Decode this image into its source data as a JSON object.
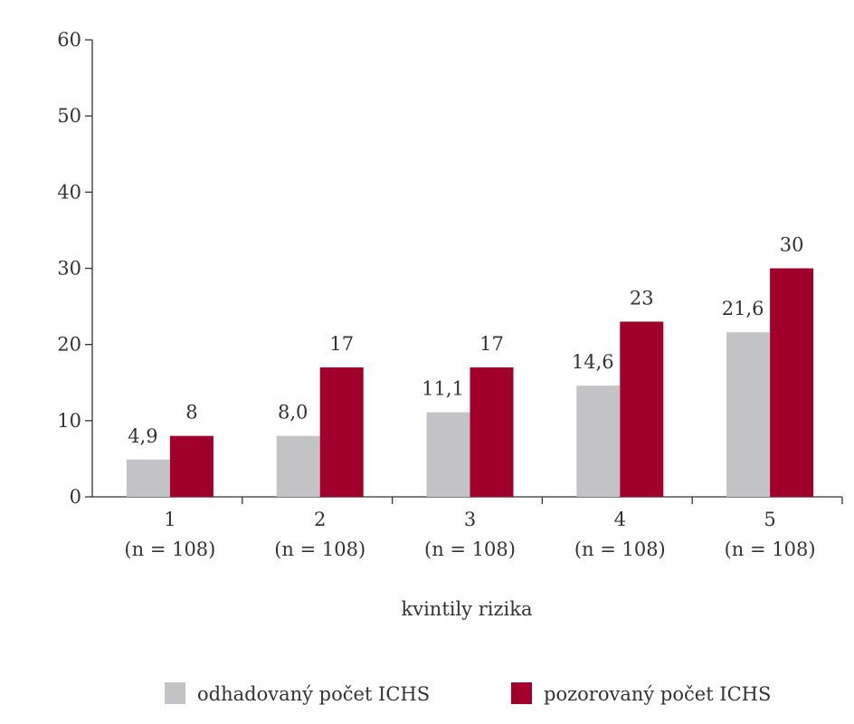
{
  "chart_data": {
    "type": "bar",
    "categories": [
      "1",
      "2",
      "3",
      "4",
      "5"
    ],
    "category_sublabels": [
      "(n = 108)",
      "(n = 108)",
      "(n = 108)",
      "(n = 108)",
      "(n = 108)"
    ],
    "series": [
      {
        "name": "odhadovaný počet ICHS",
        "color": "#c3c3c5",
        "values": [
          4.9,
          8.0,
          11.1,
          14.6,
          21.6
        ],
        "labels": [
          "4,9",
          "8,0",
          "11,1",
          "14,6",
          "21,6"
        ]
      },
      {
        "name": "pozorovaný počet ICHS",
        "color": "#a0002a",
        "values": [
          8,
          17,
          17,
          23,
          30
        ],
        "labels": [
          "8",
          "17",
          "17",
          "23",
          "30"
        ]
      }
    ],
    "xlabel": "kvintily rizika",
    "ylabel": "",
    "ylim": [
      0,
      60
    ],
    "yticks": [
      0,
      10,
      20,
      30,
      40,
      50,
      60
    ],
    "grid": false,
    "legend_position": "bottom"
  }
}
